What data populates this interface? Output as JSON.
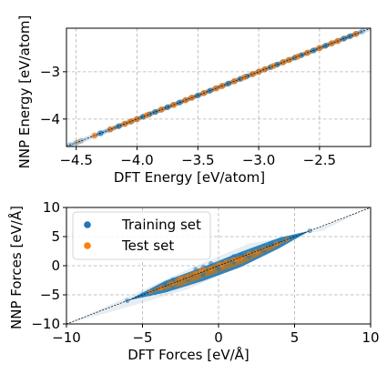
{
  "chart_data": [
    {
      "type": "scatter",
      "xlabel": "DFT Energy [eV/atom]",
      "ylabel": "NNP Energy [eV/atom]",
      "xlim": [
        -4.58,
        -2.08
      ],
      "ylim": [
        -4.58,
        -2.08
      ],
      "xticks": [
        -4.5,
        -4.0,
        -3.5,
        -3.0,
        -2.5
      ],
      "xtick_labels": [
        "−4.5",
        "−4.0",
        "−3.5",
        "−3.0",
        "−2.5"
      ],
      "yticks": [
        -4,
        -3
      ],
      "ytick_labels": [
        "−4",
        "−3"
      ],
      "grid": true,
      "reference_line": "y = x",
      "series": [
        {
          "color": "#1f77b4",
          "x": [
            -4.55,
            -4.5,
            -4.46,
            -4.3,
            -4.22,
            -4.15,
            -4.1,
            -4.05,
            -4.0,
            -3.95,
            -3.9,
            -3.85,
            -3.8,
            -3.75,
            -3.7,
            -3.65,
            -3.6,
            -3.55,
            -3.5,
            -3.45,
            -3.4,
            -3.35,
            -3.3,
            -3.25,
            -3.2,
            -3.15,
            -3.1,
            -3.05,
            -3.0,
            -2.95,
            -2.9,
            -2.85,
            -2.8,
            -2.75,
            -2.7,
            -2.65,
            -2.6,
            -2.55,
            -2.5,
            -2.45,
            -2.4,
            -2.35,
            -2.3,
            -2.25,
            -2.2,
            -2.15
          ],
          "y": [
            -4.55,
            -4.5,
            -4.46,
            -4.3,
            -4.22,
            -4.15,
            -4.1,
            -4.05,
            -4.0,
            -3.95,
            -3.9,
            -3.85,
            -3.8,
            -3.75,
            -3.7,
            -3.65,
            -3.6,
            -3.55,
            -3.5,
            -3.45,
            -3.4,
            -3.35,
            -3.3,
            -3.25,
            -3.2,
            -3.15,
            -3.1,
            -3.05,
            -3.0,
            -2.95,
            -2.9,
            -2.85,
            -2.8,
            -2.75,
            -2.7,
            -2.65,
            -2.6,
            -2.55,
            -2.5,
            -2.45,
            -2.4,
            -2.35,
            -2.3,
            -2.25,
            -2.2,
            -2.15
          ]
        },
        {
          "color": "#ff7f0e",
          "x": [
            -4.48,
            -4.35,
            -4.22,
            -4.1,
            -4.05,
            -4.0,
            -3.92,
            -3.8,
            -3.7,
            -3.6,
            -3.55,
            -3.45,
            -3.35,
            -3.3,
            -3.2,
            -3.12,
            -3.05,
            -3.0,
            -2.95,
            -2.88,
            -2.8,
            -2.75,
            -2.68,
            -2.6,
            -2.5,
            -2.4,
            -2.35,
            -2.2
          ],
          "y": [
            -4.48,
            -4.35,
            -4.22,
            -4.1,
            -4.05,
            -4.0,
            -3.92,
            -3.8,
            -3.7,
            -3.6,
            -3.55,
            -3.45,
            -3.35,
            -3.3,
            -3.2,
            -3.12,
            -3.05,
            -3.0,
            -2.95,
            -2.88,
            -2.8,
            -2.75,
            -2.68,
            -2.6,
            -2.5,
            -2.4,
            -2.35,
            -2.2
          ]
        }
      ]
    },
    {
      "type": "scatter",
      "xlabel": "DFT Forces [eV/Å]",
      "ylabel": "NNP Forces [eV/Å]",
      "xlim": [
        -10,
        10
      ],
      "ylim": [
        -10,
        10
      ],
      "xticks": [
        -10,
        -5,
        0,
        5,
        10
      ],
      "xtick_labels": [
        "−10",
        "−5",
        "0",
        "5",
        "10"
      ],
      "yticks": [
        -10,
        -5,
        0,
        5,
        10
      ],
      "ytick_labels": [
        "−10",
        "−5",
        "0",
        "5",
        "10"
      ],
      "grid": true,
      "reference_line": "y = x",
      "legend": {
        "placement": "top-left",
        "entries": [
          "Training set",
          "Test set"
        ]
      },
      "series": [
        {
          "name": "Training set",
          "color": "#1f77b4",
          "x": [
            -6,
            -5,
            -4.5,
            -3.5,
            -3,
            -2,
            -1.5,
            -1,
            -0.5,
            0,
            0.5,
            1,
            1.5,
            2,
            3,
            3.5,
            4.5,
            5,
            6,
            -1,
            1,
            0,
            -3,
            3
          ],
          "y": [
            -6,
            -5,
            -4.8,
            -3.2,
            -2.4,
            -2.4,
            -0.6,
            -1.6,
            0.4,
            0,
            0.8,
            0.6,
            1.9,
            1.6,
            2.6,
            3.8,
            4.5,
            5,
            6,
            -0.2,
            1.6,
            -0.6,
            -3.4,
            3.3
          ]
        },
        {
          "name": "Test set",
          "color": "#ff7f0e",
          "x": [
            -4.5,
            -3.8,
            -3,
            -2.5,
            -2,
            -1.5,
            -1,
            -0.5,
            0,
            0.5,
            1,
            1.5,
            2,
            2.5,
            3,
            3.8,
            4.5,
            -1.2,
            1.2,
            0.2
          ],
          "y": [
            -4.5,
            -3.9,
            -3.1,
            -2.2,
            -2.0,
            -1.3,
            -0.6,
            -0.6,
            0.3,
            0.7,
            1.1,
            1.3,
            2.1,
            2.4,
            3.0,
            3.8,
            4.5,
            -0.9,
            1.0,
            0.0
          ]
        }
      ]
    }
  ]
}
